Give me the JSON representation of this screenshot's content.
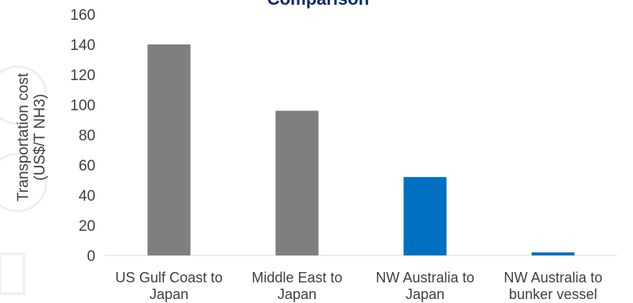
{
  "chart_data": {
    "type": "bar",
    "title": "Comparison",
    "ylabel": "Transportation cost (US$/T NH3)",
    "xlabel": "",
    "ylim": [
      0,
      160
    ],
    "yticks": [
      0,
      20,
      40,
      60,
      80,
      100,
      120,
      140,
      160
    ],
    "grid": false,
    "categories": [
      "US Gulf Coast to Japan",
      "Middle East to Japan",
      "NW Australia to Japan",
      "NW Australia to bunker vessel"
    ],
    "values": [
      140,
      96,
      52,
      2
    ],
    "colors": [
      "#7f7f7f",
      "#7f7f7f",
      "#0070c0",
      "#0070c0"
    ]
  }
}
